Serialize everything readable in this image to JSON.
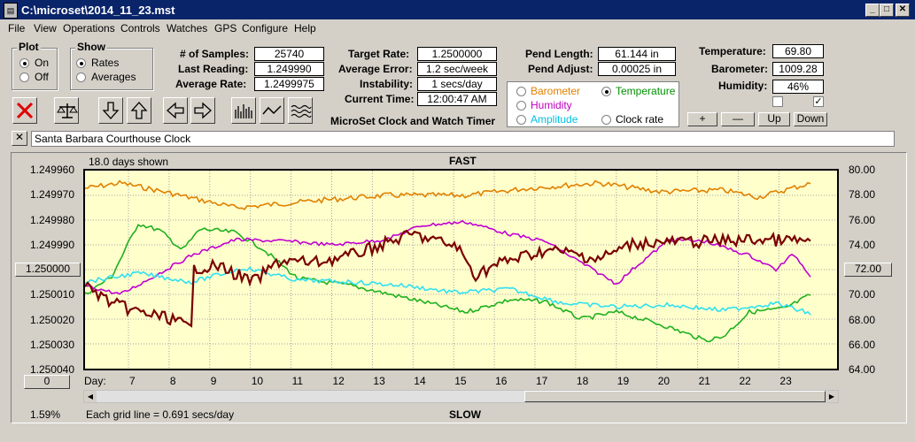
{
  "window": {
    "title": "C:\\microset\\2014_11_23.mst",
    "app_icon": "app-icon",
    "minimize": "_",
    "maximize": "□",
    "close": "✕"
  },
  "menu": [
    "File",
    "View",
    "Operations",
    "Controls",
    "Watches",
    "GPS",
    "Configure",
    "Help"
  ],
  "plot_group": {
    "label": "Plot",
    "options": [
      "On",
      "Off"
    ],
    "selected": "On"
  },
  "show_group": {
    "label": "Show",
    "options": [
      "Rates",
      "Averages"
    ],
    "selected": "Rates"
  },
  "stats_left": [
    {
      "label": "# of Samples:",
      "value": "25740"
    },
    {
      "label": "Last Reading:",
      "value": "1.249990"
    },
    {
      "label": "Average Rate:",
      "value": "1.2499975"
    }
  ],
  "stats_mid": [
    {
      "label": "Target Rate:",
      "value": "1.2500000"
    },
    {
      "label": "Average Error:",
      "value": "1.2 sec/week"
    },
    {
      "label": "Instability:",
      "value": "1 secs/day"
    },
    {
      "label": "Current Time:",
      "value": "12:00:47 AM"
    }
  ],
  "stats_pend": [
    {
      "label": "Pend Length:",
      "value": "61.144 in"
    },
    {
      "label": "Pend Adjust:",
      "value": "0.00025 in"
    }
  ],
  "stats_env": [
    {
      "label": "Temperature:",
      "value": "69.80"
    },
    {
      "label": "Barometer:",
      "value": "1009.28"
    },
    {
      "label": "Humidity:",
      "value": "46%"
    }
  ],
  "env_checks": [
    false,
    true
  ],
  "caption": "MicroSet Clock and Watch Timer",
  "legend": [
    {
      "label": "Barometer",
      "color": "#e08000",
      "selected": false
    },
    {
      "label": "Temperature",
      "color": "#009000",
      "selected": true
    },
    {
      "label": "Humidity",
      "color": "#c000c0",
      "selected": false
    },
    {
      "label": "Clock rate",
      "color": "#000000",
      "selected": false
    },
    {
      "label": "Amplitude",
      "color": "#00c0e0",
      "selected": false
    }
  ],
  "scale_buttons": [
    "+",
    "—",
    "Up",
    "Down"
  ],
  "close_x": "✕",
  "clock_name": "Santa Barbara Courthouse Clock",
  "graph": {
    "days_shown": "18.0 days shown",
    "top_label": "FAST",
    "bottom_label": "SLOW",
    "grid_note": "Each grid line = 0.691 secs/day",
    "percent": "1.59%",
    "day_label": "Day:",
    "zero_button": "0",
    "left_ticks": [
      "1.249960",
      "1.249970",
      "1.249980",
      "1.249990",
      "1.250000",
      "1.250010",
      "1.250020",
      "1.250030",
      "1.250040"
    ],
    "right_ticks": [
      "80.00",
      "78.00",
      "76.00",
      "74.00",
      "72.00",
      "70.00",
      "68.00",
      "66.00",
      "64.00"
    ],
    "day_ticks": [
      "7",
      "8",
      "9",
      "10",
      "11",
      "12",
      "13",
      "14",
      "15",
      "16",
      "17",
      "18",
      "19",
      "20",
      "21",
      "22",
      "23"
    ],
    "series_colors": {
      "clock": "#7a0000",
      "barometer": "#e08000",
      "temperature": "#20b020",
      "humidity": "#c000d0",
      "amplitude": "#30e0f0"
    }
  }
}
